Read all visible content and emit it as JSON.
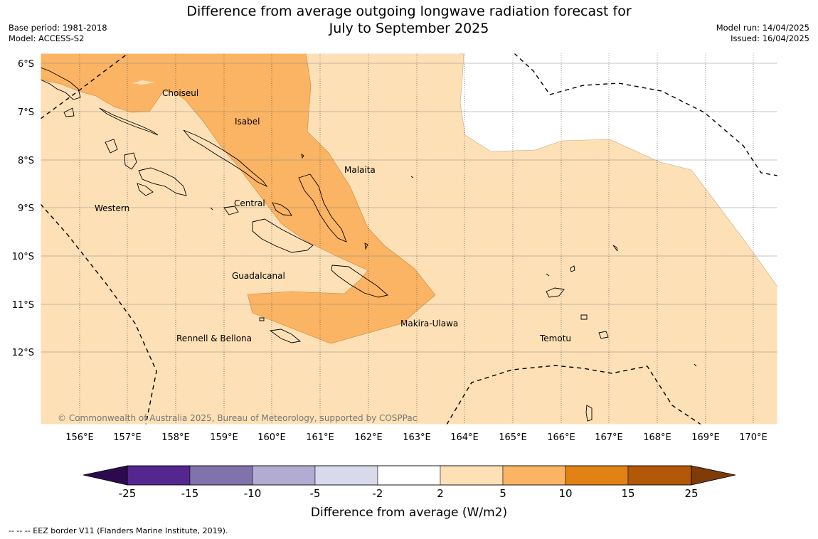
{
  "title": {
    "line1": "Difference from average outgoing longwave radiation forecast for",
    "line2": "July to September 2025"
  },
  "meta": {
    "base_period": "Base period: 1981-2018",
    "model": "Model: ACCESS-S2",
    "model_run": "Model run: 14/04/2025",
    "issued": "Issued: 16/04/2025"
  },
  "map": {
    "lat_labels": [
      "6°S",
      "7°S",
      "8°S",
      "9°S",
      "10°S",
      "11°S",
      "12°S"
    ],
    "lon_labels": [
      "156°E",
      "157°E",
      "158°E",
      "159°E",
      "160°E",
      "161°E",
      "162°E",
      "163°E",
      "164°E",
      "165°E",
      "166°E",
      "167°E",
      "168°E",
      "169°E",
      "170°E"
    ],
    "regions": [
      "Choiseul",
      "Isabel",
      "Malaita",
      "Western",
      "Central",
      "Guadalcanal",
      "Makira-Ulawa",
      "Rennell & Bellona",
      "Temotu"
    ],
    "copyright": "© Commonwealth of Australia 2025, Bureau of Meteorology, supported by COSPPac"
  },
  "colorbar": {
    "tick_labels": [
      "-25",
      "-15",
      "-10",
      "-5",
      "-2",
      "2",
      "5",
      "10",
      "15",
      "25"
    ],
    "label": "Difference from average (W/m2)",
    "colors": [
      "#2d0a4e",
      "#54278f",
      "#8073ac",
      "#b2abd2",
      "#d8daeb",
      "#ffffff",
      "#fde0b6",
      "#fbb463",
      "#e08214",
      "#b35806",
      "#7f3b08"
    ]
  },
  "footnote": "--  --  -- EEZ border V11 (Flanders Marine Institute, 2019)."
}
